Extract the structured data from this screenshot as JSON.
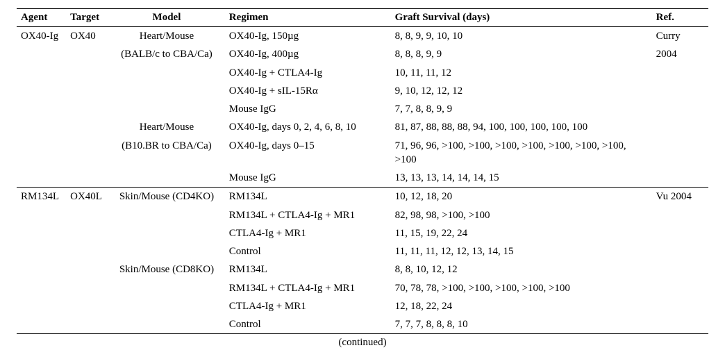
{
  "headers": {
    "agent": "Agent",
    "target": "Target",
    "model": "Model",
    "regimen": "Regimen",
    "graft": "Graft Survival (days)",
    "ref": "Ref."
  },
  "footer": "(continued)",
  "sections": [
    {
      "agent": "OX40-Ig",
      "target": "OX40",
      "ref_line1": "Curry",
      "ref_line2": "2004",
      "models": [
        {
          "model_line1": "Heart/Mouse",
          "model_line2": "(BALB/c to CBA/Ca)",
          "rows": [
            {
              "regimen": "OX40-Ig, 150µg",
              "graft": "8, 8, 9, 9, 10, 10"
            },
            {
              "regimen": "OX40-Ig, 400µg",
              "graft": "8, 8, 8, 9, 9"
            },
            {
              "regimen": "OX40-Ig + CTLA4-Ig",
              "graft": "10, 11, 11, 12"
            },
            {
              "regimen": "OX40-Ig + sIL-15Rα",
              "graft": "9, 10, 12, 12, 12"
            },
            {
              "regimen": "Mouse IgG",
              "graft": "7, 7, 8, 8, 9, 9"
            }
          ]
        },
        {
          "model_line1": "Heart/Mouse",
          "model_line2": "(B10.BR to CBA/Ca)",
          "rows": [
            {
              "regimen": "OX40-Ig, days 0, 2, 4, 6, 8, 10",
              "graft": "81, 87, 88, 88, 88, 94, 100, 100, 100, 100, 100"
            },
            {
              "regimen": "OX40-Ig, days 0–15",
              "graft": "71, 96, 96, >100,  >100,  >100,  >100, >100,  >100,  >100,  >100"
            },
            {
              "regimen": "Mouse IgG",
              "graft": "13, 13, 13, 14, 14, 14, 15"
            }
          ]
        }
      ]
    },
    {
      "agent": "RM134L",
      "target": "OX40L",
      "ref_line1": "Vu 2004",
      "ref_line2": "",
      "models": [
        {
          "model_line1": "Skin/Mouse (CD4KO)",
          "model_line2": "",
          "rows": [
            {
              "regimen": "RM134L",
              "graft": "10, 12, 18, 20"
            },
            {
              "regimen": "RM134L + CTLA4-Ig + MR1",
              "graft": "82, 98, 98, >100, >100"
            },
            {
              "regimen": "CTLA4-Ig + MR1",
              "graft": "11, 15, 19, 22, 24"
            },
            {
              "regimen": "Control",
              "graft": "11, 11, 11, 12, 12, 13, 14, 15"
            }
          ]
        },
        {
          "model_line1": "Skin/Mouse (CD8KO)",
          "model_line2": "",
          "rows": [
            {
              "regimen": "RM134L",
              "graft": "8, 8, 10, 12, 12"
            },
            {
              "regimen": "RM134L + CTLA4-Ig + MR1",
              "graft": "70, 78, 78, >100, >100, >100, >100, >100"
            },
            {
              "regimen": "CTLA4-Ig + MR1",
              "graft": "12, 18, 22, 24"
            },
            {
              "regimen": "Control",
              "graft": "7, 7, 7, 8, 8, 8, 10"
            }
          ]
        }
      ]
    }
  ]
}
